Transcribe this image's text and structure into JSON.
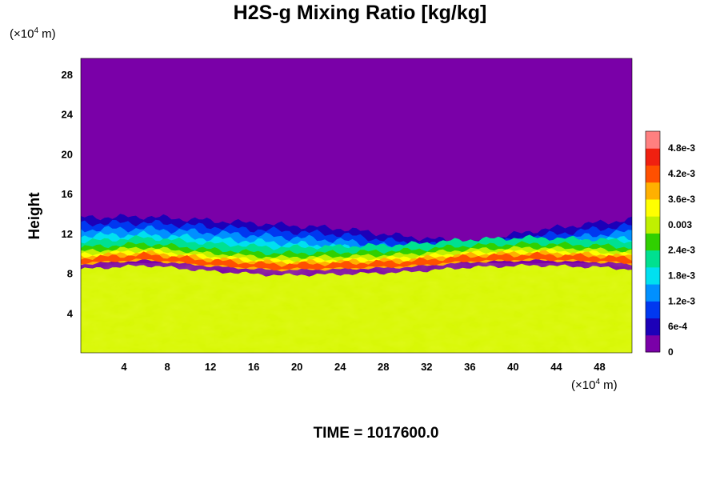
{
  "title": "H2S-g Mixing Ratio [kg/kg]",
  "y_unit": {
    "prefix": "(×10",
    "exp": "4",
    "suffix": " m)"
  },
  "x_unit": {
    "prefix": "(×10",
    "exp": "4",
    "suffix": " m)"
  },
  "time_label": "TIME = 1017600.0",
  "chart_data": {
    "type": "heatmap",
    "title": "H2S-g Mixing Ratio [kg/kg]",
    "xlabel": "",
    "ylabel": "Height",
    "x_unit": "×10^4 m",
    "y_unit": "×10^4 m",
    "xlim": [
      0,
      51
    ],
    "ylim": [
      0,
      29.6
    ],
    "x_ticks": [
      "4",
      "8",
      "12",
      "16",
      "20",
      "24",
      "28",
      "32",
      "36",
      "40",
      "44",
      "48"
    ],
    "y_ticks": [
      "4",
      "8",
      "12",
      "16",
      "20",
      "24",
      "28"
    ],
    "colorbar": {
      "labels": [
        "0",
        "6e-4",
        "1.2e-3",
        "1.8e-3",
        "2.4e-3",
        "0.003",
        "3.6e-3",
        "4.2e-3",
        "4.8e-3"
      ],
      "max": 0.0052,
      "colors": [
        "#7a00a8",
        "#1c00b8",
        "#0038f0",
        "#0090ff",
        "#00e0f0",
        "#00e090",
        "#30d000",
        "#c0f000",
        "#ffff00",
        "#ffb000",
        "#ff5000",
        "#f02010",
        "#ff8080"
      ]
    },
    "profile": {
      "x": [
        0,
        6,
        12,
        18,
        24,
        30,
        36,
        42,
        48,
        51
      ],
      "top_height": [
        13.5,
        13.6,
        13.2,
        12.8,
        12.4,
        11.6,
        11.0,
        12.2,
        13.0,
        13.3
      ],
      "peak_band_height": [
        9.6,
        10.0,
        9.4,
        9.0,
        9.1,
        9.3,
        9.8,
        10.0,
        9.8,
        9.6
      ]
    },
    "values_note": "",
    "grid": false
  }
}
